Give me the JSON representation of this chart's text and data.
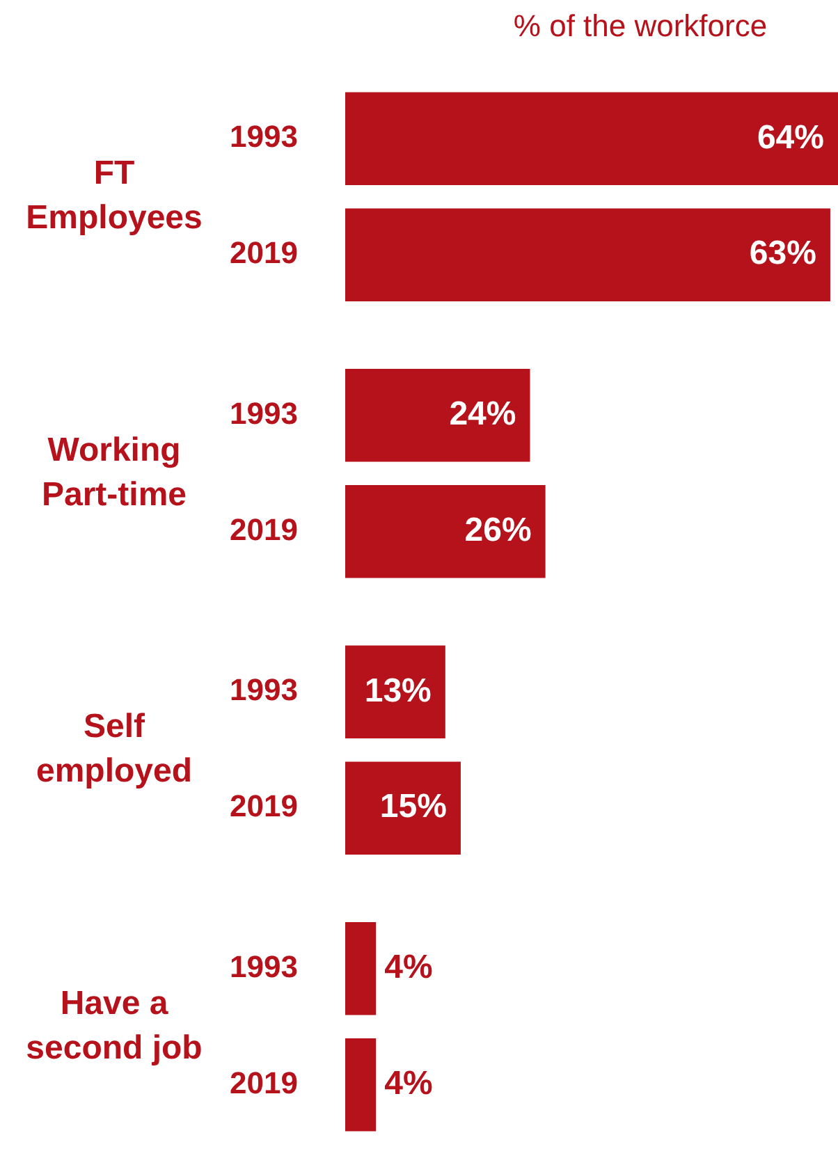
{
  "chart_data": {
    "type": "bar",
    "orientation": "horizontal",
    "xlabel": "% of the workforce",
    "categories": [
      "FT Employees",
      "Working Part-time",
      "Self employed",
      "Have a second job"
    ],
    "xlim": [
      0,
      64
    ],
    "tick_labels": "y",
    "grid": false,
    "legend": false,
    "series": [
      {
        "name": "1993",
        "color": "#b5121b",
        "values": [
          64,
          24,
          13,
          4
        ],
        "value_labels": [
          "64%",
          "24%",
          "13%",
          "4%"
        ]
      },
      {
        "name": "2019",
        "color": "#b5121b",
        "values": [
          63,
          26,
          15,
          4
        ],
        "value_labels": [
          "63%",
          "26%",
          "15%",
          "4%"
        ]
      }
    ]
  }
}
